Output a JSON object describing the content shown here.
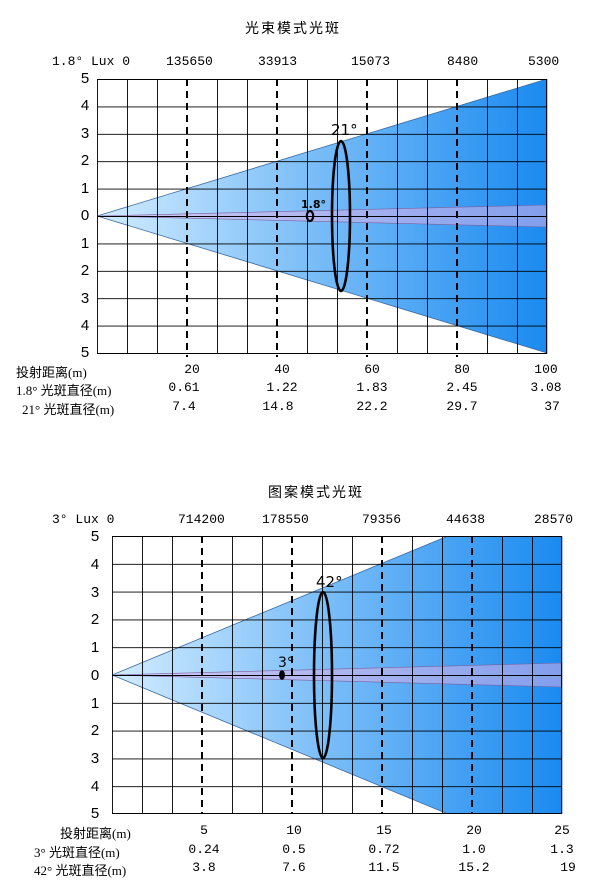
{
  "panels": [
    {
      "title": "光束模式光斑",
      "lux_head": "1.8° Lux 0",
      "lux_values": [
        "135650",
        "33913",
        "15073",
        "8480",
        "5300"
      ],
      "y_labels": [
        "5",
        "4",
        "3",
        "2",
        "1",
        "0",
        "1",
        "2",
        "3",
        "4",
        "5"
      ],
      "narrow_beam_label": "1.8°",
      "wide_beam_label": "21°",
      "rows": [
        {
          "label": "投射距离(m)",
          "values": [
            "20",
            "40",
            "60",
            "80",
            "100"
          ]
        },
        {
          "label": "1.8° 光斑直径(m)",
          "values": [
            "0.61",
            "1.22",
            "1.83",
            "2.45",
            "3.08"
          ]
        },
        {
          "label": "21° 光斑直径(m)",
          "values": [
            "7.4",
            "14.8",
            "22.2",
            "29.7",
            "37"
          ]
        }
      ]
    },
    {
      "title": "图案模式光斑",
      "lux_head": "3° Lux 0",
      "lux_values": [
        "714200",
        "178550",
        "79356",
        "44638",
        "28570"
      ],
      "y_labels": [
        "5",
        "4",
        "3",
        "2",
        "1",
        "0",
        "1",
        "2",
        "3",
        "4",
        "5"
      ],
      "narrow_beam_label": "3°",
      "wide_beam_label": "42°",
      "rows": [
        {
          "label": "投射距离(m)",
          "values": [
            "5",
            "10",
            "15",
            "20",
            "25"
          ]
        },
        {
          "label": "3° 光斑直径(m)",
          "values": [
            "0.24",
            "0.5",
            "0.72",
            "1.0",
            "1.3"
          ]
        },
        {
          "label": "42° 光斑直径(m)",
          "values": [
            "3.8",
            "7.6",
            "11.5",
            "15.2",
            "19"
          ]
        }
      ]
    }
  ],
  "colors": {
    "beam_light": "#c8e8ff",
    "beam_dark": "#1e8cf0",
    "narrow_beam": "#d8a0e8",
    "grid": "#000000"
  }
}
